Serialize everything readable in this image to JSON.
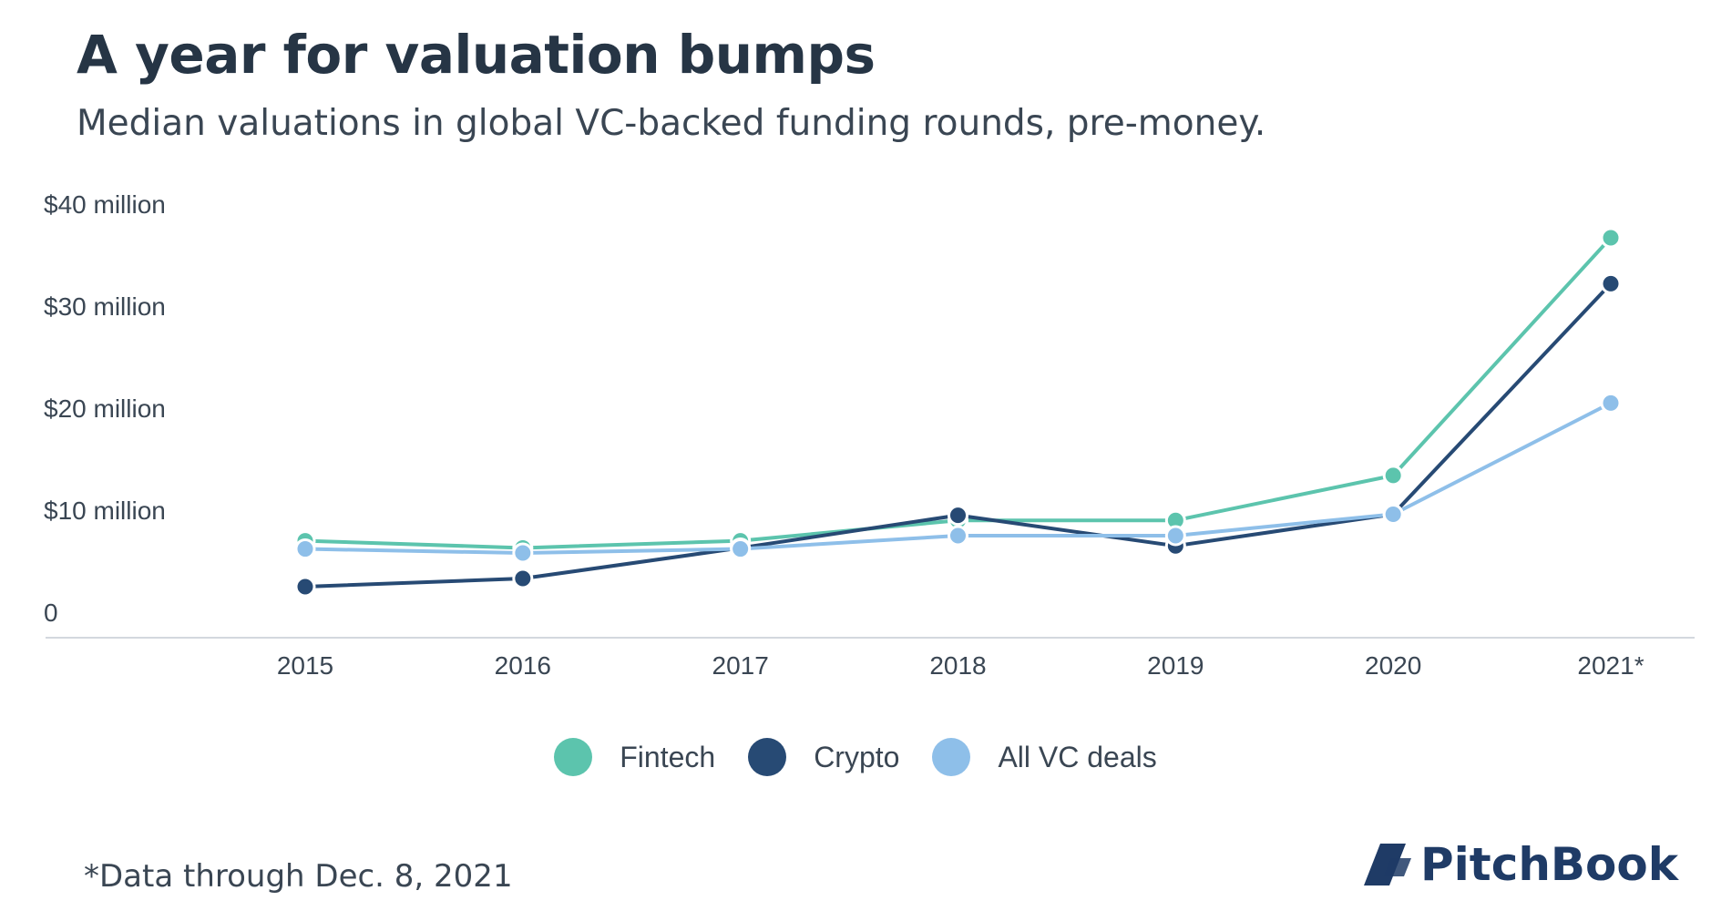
{
  "title": "A year for valuation bumps",
  "subtitle": "Median valuations in global VC-backed funding rounds, pre-money.",
  "footnote": "*Data through Dec. 8, 2021",
  "brand": "PitchBook",
  "colors": {
    "fintech": "#5cc4ad",
    "crypto": "#274a74",
    "all_vc": "#8ebfe9",
    "axis": "#d3d8de",
    "text": "#3a4653"
  },
  "chart_data": {
    "type": "line",
    "x": [
      "2015",
      "2016",
      "2017",
      "2018",
      "2019",
      "2020",
      "2021*"
    ],
    "y_tick_values": [
      0,
      10,
      20,
      30,
      40
    ],
    "y_tick_labels": [
      "0",
      "$10 million",
      "$20 million",
      "$30 million",
      "$40 million"
    ],
    "ylim": [
      0,
      40
    ],
    "ylabel": "",
    "xlabel": "",
    "grid": false,
    "legend_position": "bottom",
    "series": [
      {
        "name": "Fintech",
        "color": "#5cc4ad",
        "values": [
          9.5,
          8.8,
          9.5,
          11.5,
          11.5,
          15.9,
          39.2
        ]
      },
      {
        "name": "Crypto",
        "color": "#274a74",
        "values": [
          5.0,
          5.8,
          8.8,
          12.0,
          9.0,
          12.1,
          34.7
        ]
      },
      {
        "name": "All VC deals",
        "color": "#8ebfe9",
        "values": [
          8.7,
          8.3,
          8.7,
          10.0,
          10.0,
          12.1,
          23.0
        ]
      }
    ]
  }
}
